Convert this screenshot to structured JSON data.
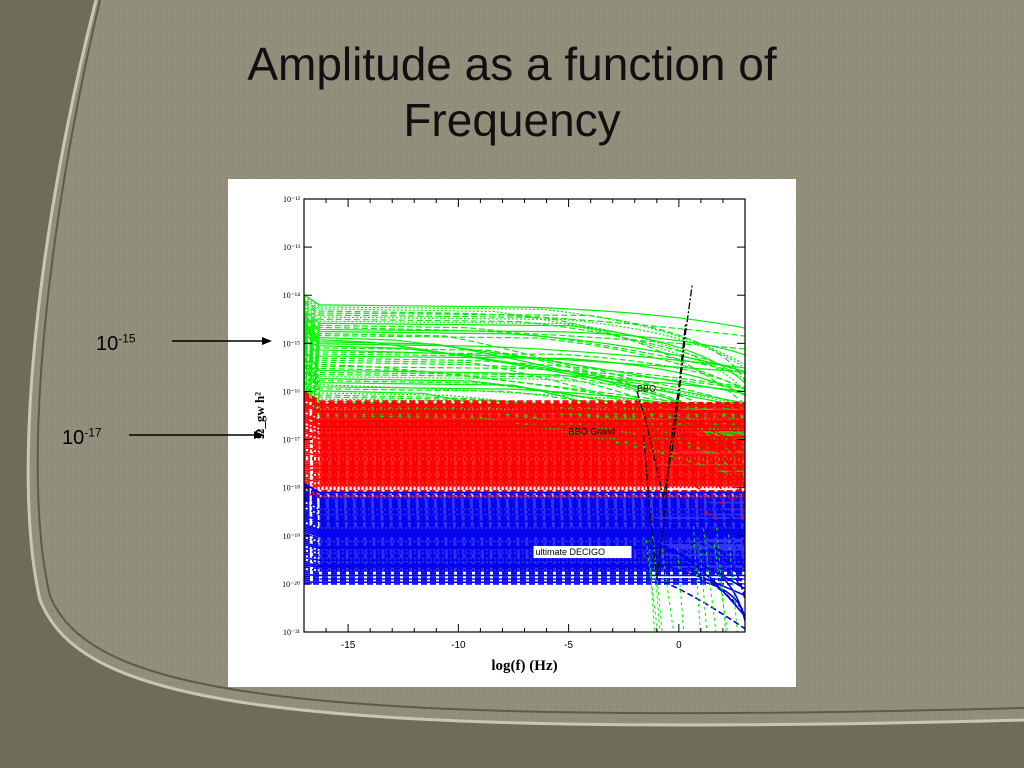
{
  "slide": {
    "title_line1": "Amplitude as a function of",
    "title_line2": "Frequency"
  },
  "callouts": [
    {
      "base": "10",
      "exponent": "-15",
      "points_to_exponent": -15
    },
    {
      "base": "10",
      "exponent": "-17",
      "points_to_exponent": -17
    }
  ],
  "colors": {
    "background": "#8f8e7b",
    "green": "#00ee00",
    "red": "#ff0000",
    "blue": "#0000ee",
    "detector_curve": "#000000"
  },
  "chart_data": {
    "type": "line",
    "xlabel": "log(f)  (Hz)",
    "ylabel": "Ω_gw h²",
    "xlim": [
      -17,
      3
    ],
    "ylim_exponent": [
      -21,
      -12
    ],
    "x_ticks": [
      -15,
      -10,
      -5,
      0
    ],
    "x_tick_labels": [
      "-15",
      "-10",
      "-5",
      "0"
    ],
    "y_tick_exponents": [
      -12,
      -13,
      -14,
      -15,
      -16,
      -17,
      -18,
      -19,
      -20,
      -21
    ],
    "y_tick_labels": [
      "10⁻¹²",
      "10⁻¹³",
      "10⁻¹⁴",
      "10⁻¹⁵",
      "10⁻¹⁶",
      "10⁻¹⁷",
      "10⁻¹⁸",
      "10⁻¹⁹",
      "10⁻²⁰",
      "10⁻²¹"
    ],
    "y_scale": "log",
    "grid": false,
    "bands": [
      {
        "color": "green",
        "log_amplitude_range": [
          -16.5,
          -14.2
        ],
        "start_log_amplitude_peak": -13.8
      },
      {
        "color": "red",
        "log_amplitude_range": [
          -18.2,
          -16.2
        ],
        "start_log_amplitude_peak": -16.5
      },
      {
        "color": "blue",
        "log_amplitude_range": [
          -20,
          -18.1
        ],
        "start_log_amplitude_peak": -18.3
      }
    ],
    "annotations": [
      {
        "text": "BBO",
        "x": -1.9,
        "y_exponent": -16
      },
      {
        "text": "BBO Grand",
        "x": -5,
        "y_exponent": -16.9
      },
      {
        "text": "ultimate DECIGO",
        "x": -6.5,
        "y_exponent": -19.4
      }
    ],
    "detector_curves": [
      {
        "name": "BBO",
        "points": [
          [
            -1.9,
            -16.0
          ],
          [
            -1.5,
            -16.6
          ],
          [
            -1.0,
            -17.6
          ],
          [
            -0.7,
            -18.2
          ],
          [
            -0.3,
            -17.2
          ],
          [
            0,
            -16.1
          ],
          [
            0.3,
            -14.8
          ],
          [
            0.6,
            -13.8
          ]
        ]
      },
      {
        "name": "BBO Grand",
        "points": [
          [
            -1.6,
            -16.9
          ],
          [
            -1.3,
            -18.6
          ],
          [
            -1.0,
            -19.9
          ],
          [
            -0.7,
            -18.8
          ],
          [
            -0.4,
            -17.2
          ],
          [
            0,
            -15.9
          ],
          [
            0.3,
            -14.6
          ]
        ]
      }
    ]
  }
}
